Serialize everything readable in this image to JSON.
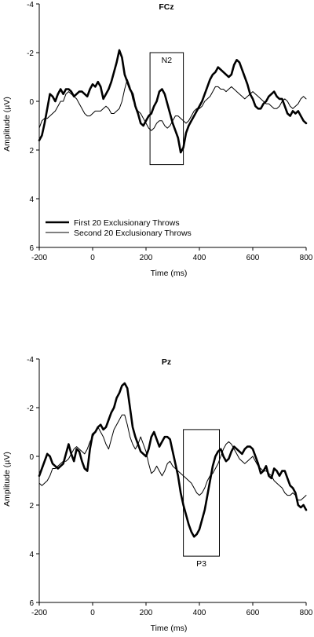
{
  "chart_data": [
    {
      "type": "line",
      "title": "FCz",
      "xlabel": "Time (ms)",
      "ylabel": "Amplitude (µV)",
      "xlim": [
        -200,
        800
      ],
      "ylim": [
        -4,
        6
      ],
      "y_inverted": true,
      "xticks": [
        -200,
        0,
        200,
        400,
        600,
        800
      ],
      "xtick_labels": [
        "-200",
        "0",
        "200",
        "400",
        "600",
        "800"
      ],
      "yticks": [
        -4,
        -2,
        0,
        2,
        4,
        6
      ],
      "ytick_labels": [
        "-4",
        "-2",
        "0",
        "2",
        "4",
        "6"
      ],
      "annotation": {
        "label": "N2",
        "x_range": [
          215,
          340
        ],
        "y_range": [
          -2.0,
          2.6
        ],
        "label_position": "top"
      },
      "legend": {
        "placement": "bottom-left"
      },
      "series": [
        {
          "name": "First 20 Exclusionary Throws",
          "style": "thick",
          "x": [
            -200,
            -190,
            -180,
            -170,
            -160,
            -150,
            -140,
            -130,
            -120,
            -110,
            -100,
            -90,
            -80,
            -70,
            -60,
            -50,
            -40,
            -30,
            -20,
            -10,
            0,
            10,
            20,
            30,
            40,
            50,
            60,
            70,
            80,
            90,
            100,
            110,
            120,
            130,
            140,
            150,
            160,
            170,
            180,
            190,
            200,
            210,
            220,
            230,
            240,
            250,
            260,
            270,
            280,
            290,
            300,
            310,
            320,
            330,
            340,
            350,
            360,
            370,
            380,
            390,
            400,
            410,
            420,
            430,
            440,
            450,
            460,
            470,
            480,
            490,
            500,
            510,
            520,
            530,
            540,
            550,
            560,
            570,
            580,
            590,
            600,
            610,
            620,
            630,
            640,
            650,
            660,
            670,
            680,
            690,
            700,
            710,
            720,
            730,
            740,
            750,
            760,
            770,
            780,
            790,
            800
          ],
          "values": [
            1.6,
            1.4,
            0.9,
            0.3,
            -0.3,
            -0.2,
            0.0,
            -0.3,
            -0.5,
            -0.3,
            -0.5,
            -0.5,
            -0.4,
            -0.2,
            -0.3,
            -0.4,
            -0.4,
            -0.3,
            -0.2,
            -0.5,
            -0.7,
            -0.6,
            -0.8,
            -0.6,
            -0.1,
            -0.3,
            -0.5,
            -0.8,
            -1.2,
            -1.6,
            -2.1,
            -1.8,
            -1.1,
            -0.8,
            -0.5,
            -0.3,
            0.2,
            0.5,
            0.9,
            1.0,
            0.8,
            0.6,
            0.5,
            0.2,
            0.0,
            -0.4,
            -0.5,
            -0.3,
            0.1,
            0.5,
            0.9,
            1.2,
            1.5,
            2.1,
            1.9,
            1.3,
            1.0,
            0.8,
            0.6,
            0.4,
            0.2,
            0.0,
            -0.3,
            -0.6,
            -0.9,
            -1.1,
            -1.2,
            -1.4,
            -1.3,
            -1.2,
            -1.1,
            -1.0,
            -1.1,
            -1.5,
            -1.7,
            -1.6,
            -1.3,
            -1.0,
            -0.7,
            -0.3,
            -0.1,
            0.2,
            0.3,
            0.3,
            0.1,
            0.0,
            -0.2,
            -0.3,
            -0.4,
            -0.2,
            -0.1,
            -0.1,
            0.2,
            0.5,
            0.6,
            0.4,
            0.5,
            0.4,
            0.6,
            0.8,
            0.9
          ]
        },
        {
          "name": "Second 20 Exclusionary Throws",
          "style": "thin",
          "x": [
            -200,
            -190,
            -180,
            -170,
            -160,
            -150,
            -140,
            -130,
            -120,
            -110,
            -100,
            -90,
            -80,
            -70,
            -60,
            -50,
            -40,
            -30,
            -20,
            -10,
            0,
            10,
            20,
            30,
            40,
            50,
            60,
            70,
            80,
            90,
            100,
            110,
            120,
            130,
            140,
            150,
            160,
            170,
            180,
            190,
            200,
            210,
            220,
            230,
            240,
            250,
            260,
            270,
            280,
            290,
            300,
            310,
            320,
            330,
            340,
            350,
            360,
            370,
            380,
            390,
            400,
            410,
            420,
            430,
            440,
            450,
            460,
            470,
            480,
            490,
            500,
            510,
            520,
            530,
            540,
            550,
            560,
            570,
            580,
            590,
            600,
            610,
            620,
            630,
            640,
            650,
            660,
            670,
            680,
            690,
            700,
            710,
            720,
            730,
            740,
            750,
            760,
            770,
            780,
            790,
            800
          ],
          "values": [
            1.1,
            0.8,
            0.7,
            0.7,
            0.6,
            0.5,
            0.4,
            0.2,
            0.0,
            0.0,
            -0.3,
            -0.4,
            -0.3,
            -0.2,
            -0.1,
            0.1,
            0.3,
            0.5,
            0.6,
            0.6,
            0.5,
            0.4,
            0.4,
            0.4,
            0.3,
            0.2,
            0.3,
            0.5,
            0.5,
            0.4,
            0.3,
            0.0,
            -0.5,
            -0.9,
            -0.6,
            -0.1,
            0.2,
            0.4,
            0.5,
            0.7,
            0.9,
            1.1,
            1.2,
            1.1,
            0.9,
            0.8,
            0.8,
            1.0,
            1.1,
            1.0,
            0.8,
            0.6,
            0.6,
            0.7,
            0.8,
            0.9,
            0.8,
            0.6,
            0.4,
            0.3,
            0.3,
            0.2,
            0.0,
            -0.1,
            -0.2,
            -0.4,
            -0.6,
            -0.6,
            -0.5,
            -0.5,
            -0.4,
            -0.5,
            -0.6,
            -0.5,
            -0.4,
            -0.3,
            -0.2,
            -0.1,
            -0.2,
            -0.3,
            -0.4,
            -0.3,
            -0.2,
            -0.1,
            0.0,
            0.1,
            0.1,
            0.2,
            0.3,
            0.3,
            0.2,
            0.0,
            -0.1,
            0.0,
            0.2,
            0.3,
            0.2,
            0.1,
            -0.1,
            -0.2,
            -0.1
          ]
        }
      ]
    },
    {
      "type": "line",
      "title": "Pz",
      "xlabel": "Time (ms)",
      "ylabel": "Amplitude (µV)",
      "xlim": [
        -200,
        800
      ],
      "ylim": [
        -4,
        6
      ],
      "y_inverted": true,
      "xticks": [
        -200,
        0,
        200,
        400,
        600,
        800
      ],
      "xtick_labels": [
        "-200",
        "0",
        "200",
        "400",
        "600",
        "800"
      ],
      "yticks": [
        -4,
        -2,
        0,
        2,
        4,
        6
      ],
      "ytick_labels": [
        "-4",
        "-2",
        "0",
        "2",
        "4",
        "6"
      ],
      "annotation": {
        "label": "P3",
        "x_range": [
          340,
          475
        ],
        "y_range": [
          -1.1,
          4.1
        ],
        "label_position": "bottom"
      },
      "series": [
        {
          "name": "First 20 Exclusionary Throws",
          "style": "thick",
          "x": [
            -200,
            -190,
            -180,
            -170,
            -160,
            -150,
            -140,
            -130,
            -120,
            -110,
            -100,
            -90,
            -80,
            -70,
            -60,
            -50,
            -40,
            -30,
            -20,
            -10,
            0,
            10,
            20,
            30,
            40,
            50,
            60,
            70,
            80,
            90,
            100,
            110,
            120,
            130,
            140,
            150,
            160,
            170,
            180,
            190,
            200,
            210,
            220,
            230,
            240,
            250,
            260,
            270,
            280,
            290,
            300,
            310,
            320,
            330,
            340,
            350,
            360,
            370,
            380,
            390,
            400,
            410,
            420,
            430,
            440,
            450,
            460,
            470,
            480,
            490,
            500,
            510,
            520,
            530,
            540,
            550,
            560,
            570,
            580,
            590,
            600,
            610,
            620,
            630,
            640,
            650,
            660,
            670,
            680,
            690,
            700,
            710,
            720,
            730,
            740,
            750,
            760,
            770,
            780,
            790,
            800
          ],
          "values": [
            0.8,
            0.5,
            0.2,
            -0.1,
            0.0,
            0.3,
            0.4,
            0.5,
            0.4,
            0.3,
            -0.1,
            -0.5,
            -0.1,
            0.2,
            -0.3,
            -0.2,
            0.2,
            0.5,
            0.6,
            -0.3,
            -0.9,
            -1.0,
            -1.2,
            -1.3,
            -1.1,
            -1.2,
            -1.5,
            -1.8,
            -2.0,
            -2.4,
            -2.6,
            -2.9,
            -3.0,
            -2.8,
            -2.0,
            -1.2,
            -0.8,
            -0.5,
            -0.2,
            -0.1,
            0.0,
            -0.3,
            -0.8,
            -1.0,
            -0.7,
            -0.4,
            -0.6,
            -0.8,
            -0.8,
            -0.7,
            -0.2,
            0.3,
            0.8,
            1.5,
            2.0,
            2.4,
            2.8,
            3.1,
            3.3,
            3.2,
            3.0,
            2.6,
            2.2,
            1.6,
            1.0,
            0.4,
            0.0,
            -0.2,
            -0.3,
            0.0,
            0.2,
            0.1,
            -0.2,
            -0.4,
            -0.3,
            -0.2,
            -0.1,
            -0.3,
            -0.4,
            -0.4,
            -0.3,
            0.0,
            0.3,
            0.7,
            0.6,
            0.4,
            0.8,
            0.9,
            0.5,
            0.6,
            0.8,
            0.6,
            0.6,
            0.9,
            1.2,
            1.3,
            1.5,
            2.0,
            2.1,
            2.0,
            2.2
          ]
        },
        {
          "name": "Second 20 Exclusionary Throws",
          "style": "thin",
          "x": [
            -200,
            -190,
            -180,
            -170,
            -160,
            -150,
            -140,
            -130,
            -120,
            -110,
            -100,
            -90,
            -80,
            -70,
            -60,
            -50,
            -40,
            -30,
            -20,
            -10,
            0,
            10,
            20,
            30,
            40,
            50,
            60,
            70,
            80,
            90,
            100,
            110,
            120,
            130,
            140,
            150,
            160,
            170,
            180,
            190,
            200,
            210,
            220,
            230,
            240,
            250,
            260,
            270,
            280,
            290,
            300,
            310,
            320,
            330,
            340,
            350,
            360,
            370,
            380,
            390,
            400,
            410,
            420,
            430,
            440,
            450,
            460,
            470,
            480,
            490,
            500,
            510,
            520,
            530,
            540,
            550,
            560,
            570,
            580,
            590,
            600,
            610,
            620,
            630,
            640,
            650,
            660,
            670,
            680,
            690,
            700,
            710,
            720,
            730,
            740,
            750,
            760,
            770,
            780,
            790,
            800
          ],
          "values": [
            1.1,
            1.2,
            1.1,
            1.0,
            0.8,
            0.5,
            0.5,
            0.4,
            0.3,
            0.2,
            0.2,
            0.1,
            -0.1,
            -0.3,
            -0.4,
            -0.3,
            -0.2,
            -0.1,
            -0.3,
            -0.6,
            -0.8,
            -1.0,
            -1.2,
            -1.0,
            -0.8,
            -0.5,
            -0.3,
            -0.7,
            -1.1,
            -1.3,
            -1.5,
            -1.7,
            -1.7,
            -1.3,
            -0.8,
            -0.5,
            -0.3,
            -0.5,
            -0.8,
            -0.5,
            -0.2,
            0.3,
            0.7,
            0.6,
            0.4,
            0.6,
            0.8,
            0.6,
            0.3,
            0.2,
            0.4,
            0.5,
            0.6,
            0.7,
            0.8,
            0.9,
            1.0,
            1.1,
            1.3,
            1.5,
            1.6,
            1.5,
            1.3,
            1.0,
            0.8,
            0.7,
            0.5,
            0.3,
            0.0,
            -0.3,
            -0.5,
            -0.6,
            -0.5,
            -0.3,
            -0.1,
            0.1,
            0.2,
            0.3,
            0.2,
            0.1,
            0.0,
            0.2,
            0.4,
            0.5,
            0.6,
            0.6,
            0.7,
            0.8,
            1.0,
            1.1,
            1.2,
            1.3,
            1.5,
            1.6,
            1.6,
            1.5,
            1.6,
            1.8,
            1.8,
            1.7,
            1.6
          ]
        }
      ]
    }
  ]
}
